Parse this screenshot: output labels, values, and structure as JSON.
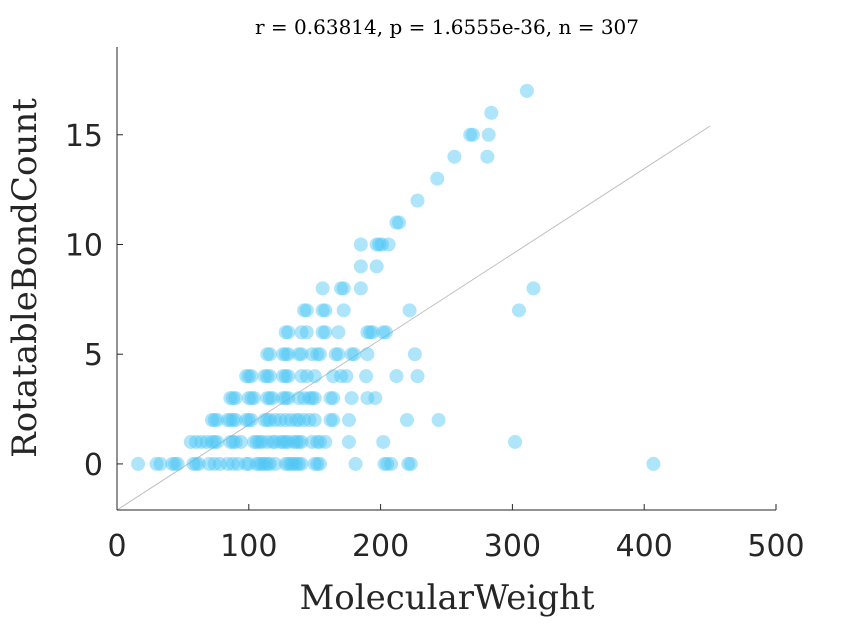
{
  "chart_data": {
    "type": "scatter",
    "title": "r = 0.63814, p = 1.6555e-36, n = 307",
    "xlabel": "MolecularWeight",
    "ylabel": "RotatableBondCount",
    "xlim": [
      0,
      500
    ],
    "ylim": [
      -2.1,
      19
    ],
    "xticks": [
      "0",
      "100",
      "200",
      "300",
      "400",
      "500"
    ],
    "yticks": [
      "0",
      "5",
      "10",
      "15"
    ],
    "marker_color": "#4cc6f5",
    "reference_line": {
      "x": [
        0,
        450
      ],
      "y": [
        -2.1,
        15.4
      ]
    },
    "points": [
      [
        16,
        0
      ],
      [
        30,
        0
      ],
      [
        33,
        0
      ],
      [
        42,
        0
      ],
      [
        44,
        0
      ],
      [
        46,
        0
      ],
      [
        58,
        0
      ],
      [
        60,
        0
      ],
      [
        62,
        0
      ],
      [
        70,
        0
      ],
      [
        74,
        0
      ],
      [
        78,
        0
      ],
      [
        84,
        0
      ],
      [
        88,
        0
      ],
      [
        92,
        0
      ],
      [
        98,
        0
      ],
      [
        100,
        0
      ],
      [
        106,
        0
      ],
      [
        108,
        0
      ],
      [
        110,
        0
      ],
      [
        112,
        0
      ],
      [
        114,
        0
      ],
      [
        116,
        0
      ],
      [
        120,
        0
      ],
      [
        128,
        0
      ],
      [
        130,
        0
      ],
      [
        132,
        0
      ],
      [
        134,
        0
      ],
      [
        136,
        0
      ],
      [
        138,
        0
      ],
      [
        140,
        0
      ],
      [
        150,
        0
      ],
      [
        152,
        0
      ],
      [
        154,
        0
      ],
      [
        181,
        0
      ],
      [
        203,
        0
      ],
      [
        205,
        0
      ],
      [
        208,
        0
      ],
      [
        221,
        0
      ],
      [
        223,
        0
      ],
      [
        407,
        0
      ],
      [
        56,
        1
      ],
      [
        60,
        1
      ],
      [
        64,
        1
      ],
      [
        68,
        1
      ],
      [
        72,
        1
      ],
      [
        74,
        1
      ],
      [
        76,
        1
      ],
      [
        86,
        1
      ],
      [
        88,
        1
      ],
      [
        90,
        1
      ],
      [
        94,
        1
      ],
      [
        104,
        1
      ],
      [
        106,
        1
      ],
      [
        108,
        1
      ],
      [
        110,
        1
      ],
      [
        114,
        1
      ],
      [
        118,
        1
      ],
      [
        120,
        1
      ],
      [
        124,
        1
      ],
      [
        126,
        1
      ],
      [
        128,
        1
      ],
      [
        130,
        1
      ],
      [
        134,
        1
      ],
      [
        136,
        1
      ],
      [
        138,
        1
      ],
      [
        140,
        1
      ],
      [
        148,
        1
      ],
      [
        152,
        1
      ],
      [
        154,
        1
      ],
      [
        158,
        1
      ],
      [
        176,
        1
      ],
      [
        202,
        1
      ],
      [
        302,
        1
      ],
      [
        72,
        2
      ],
      [
        74,
        2
      ],
      [
        76,
        2
      ],
      [
        84,
        2
      ],
      [
        86,
        2
      ],
      [
        88,
        2
      ],
      [
        90,
        2
      ],
      [
        98,
        2
      ],
      [
        100,
        2
      ],
      [
        102,
        2
      ],
      [
        112,
        2
      ],
      [
        114,
        2
      ],
      [
        116,
        2
      ],
      [
        120,
        2
      ],
      [
        124,
        2
      ],
      [
        128,
        2
      ],
      [
        132,
        2
      ],
      [
        136,
        2
      ],
      [
        138,
        2
      ],
      [
        142,
        2
      ],
      [
        146,
        2
      ],
      [
        150,
        2
      ],
      [
        162,
        2
      ],
      [
        164,
        2
      ],
      [
        176,
        2
      ],
      [
        220,
        2
      ],
      [
        244,
        2
      ],
      [
        86,
        3
      ],
      [
        88,
        3
      ],
      [
        90,
        3
      ],
      [
        100,
        3
      ],
      [
        102,
        3
      ],
      [
        104,
        3
      ],
      [
        114,
        3
      ],
      [
        116,
        3
      ],
      [
        118,
        3
      ],
      [
        126,
        3
      ],
      [
        128,
        3
      ],
      [
        130,
        3
      ],
      [
        138,
        3
      ],
      [
        142,
        3
      ],
      [
        146,
        3
      ],
      [
        148,
        3
      ],
      [
        150,
        3
      ],
      [
        162,
        3
      ],
      [
        164,
        3
      ],
      [
        178,
        3
      ],
      [
        190,
        3
      ],
      [
        196,
        3
      ],
      [
        98,
        4
      ],
      [
        100,
        4
      ],
      [
        102,
        4
      ],
      [
        112,
        4
      ],
      [
        114,
        4
      ],
      [
        116,
        4
      ],
      [
        126,
        4
      ],
      [
        128,
        4
      ],
      [
        130,
        4
      ],
      [
        140,
        4
      ],
      [
        144,
        4
      ],
      [
        150,
        4
      ],
      [
        164,
        4
      ],
      [
        170,
        4
      ],
      [
        174,
        4
      ],
      [
        189,
        4
      ],
      [
        212,
        4
      ],
      [
        228,
        4
      ],
      [
        114,
        5
      ],
      [
        116,
        5
      ],
      [
        126,
        5
      ],
      [
        128,
        5
      ],
      [
        130,
        5
      ],
      [
        138,
        5
      ],
      [
        140,
        5
      ],
      [
        148,
        5
      ],
      [
        152,
        5
      ],
      [
        154,
        5
      ],
      [
        166,
        5
      ],
      [
        168,
        5
      ],
      [
        178,
        5
      ],
      [
        180,
        5
      ],
      [
        190,
        5
      ],
      [
        226,
        5
      ],
      [
        128,
        6
      ],
      [
        130,
        6
      ],
      [
        140,
        6
      ],
      [
        144,
        6
      ],
      [
        156,
        6
      ],
      [
        158,
        6
      ],
      [
        168,
        6
      ],
      [
        190,
        6
      ],
      [
        192,
        6
      ],
      [
        194,
        6
      ],
      [
        202,
        6
      ],
      [
        204,
        6
      ],
      [
        142,
        7
      ],
      [
        144,
        7
      ],
      [
        156,
        7
      ],
      [
        158,
        7
      ],
      [
        172,
        7
      ],
      [
        222,
        7
      ],
      [
        305,
        7
      ],
      [
        156,
        8
      ],
      [
        170,
        8
      ],
      [
        172,
        8
      ],
      [
        185,
        8
      ],
      [
        316,
        8
      ],
      [
        185,
        9
      ],
      [
        197,
        9
      ],
      [
        185,
        10
      ],
      [
        197,
        10
      ],
      [
        199,
        10
      ],
      [
        201,
        10
      ],
      [
        206,
        10
      ],
      [
        212,
        11
      ],
      [
        214,
        11
      ],
      [
        228,
        12
      ],
      [
        243,
        13
      ],
      [
        256,
        14
      ],
      [
        281,
        14
      ],
      [
        268,
        15
      ],
      [
        270,
        15
      ],
      [
        282,
        15
      ],
      [
        284,
        16
      ],
      [
        311,
        17
      ]
    ]
  }
}
